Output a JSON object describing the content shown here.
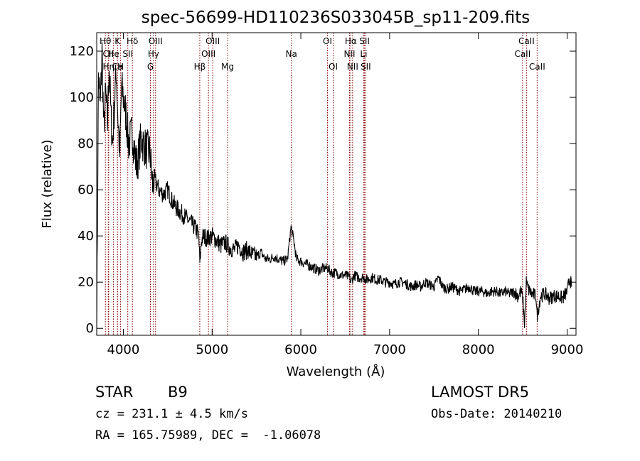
{
  "chart_data": {
    "type": "line",
    "title": "spec-56699-HD110236S033045B_sp11-209.fits",
    "xlabel": "Wavelength (Å)",
    "ylabel": "Flux (relative)",
    "xlim": [
      3700,
      9100
    ],
    "ylim": [
      -3,
      128
    ],
    "xticks": [
      4000,
      5000,
      6000,
      7000,
      8000,
      9000
    ],
    "yticks": [
      0,
      20,
      40,
      60,
      80,
      100,
      120
    ],
    "grid": false,
    "line_color": "#000000",
    "marker_color": "#8b0000",
    "series": [
      {
        "x": [
          3700,
          3720,
          3740,
          3760,
          3780,
          3800,
          3820,
          3840,
          3860,
          3880,
          3900,
          3920,
          3940,
          3960,
          3980,
          4000,
          4030,
          4060,
          4100,
          4150,
          4200,
          4250,
          4300,
          4330,
          4350,
          4400,
          4450,
          4500,
          4550,
          4600,
          4650,
          4700,
          4750,
          4800,
          4830,
          4850,
          4862,
          4880,
          4900,
          4950,
          5000,
          5050,
          5100,
          5150,
          5200,
          5250,
          5300,
          5350,
          5400,
          5450,
          5500,
          5550,
          5600,
          5650,
          5700,
          5750,
          5800,
          5850,
          5890,
          5920,
          5950,
          6000,
          6050,
          6100,
          6150,
          6200,
          6250,
          6300,
          6350,
          6400,
          6450,
          6500,
          6550,
          6563,
          6600,
          6650,
          6700,
          6750,
          6800,
          6850,
          6900,
          6950,
          7000,
          7050,
          7100,
          7150,
          7200,
          7250,
          7300,
          7350,
          7400,
          7450,
          7500,
          7550,
          7600,
          7650,
          7700,
          7750,
          7800,
          7850,
          7900,
          7950,
          8000,
          8050,
          8100,
          8150,
          8200,
          8250,
          8300,
          8350,
          8400,
          8450,
          8480,
          8500,
          8520,
          8540,
          8560,
          8600,
          8650,
          8662,
          8700,
          8750,
          8800,
          8850,
          8900,
          8950,
          9000,
          9030,
          9050
        ],
        "y": [
          0,
          110,
          95,
          120,
          85,
          102,
          88,
          115,
          92,
          80,
          98,
          112,
          90,
          75,
          105,
          100,
          92,
          80,
          85,
          70,
          82,
          78,
          76,
          62,
          65,
          60,
          58,
          60,
          55,
          52,
          50,
          48,
          46,
          44,
          42,
          40,
          28,
          38,
          40,
          39,
          40,
          38,
          36,
          37,
          35,
          34,
          36,
          33,
          34,
          32,
          31,
          33,
          30,
          30,
          31,
          30,
          29,
          30,
          44,
          38,
          30,
          29,
          28,
          27,
          26,
          25,
          26,
          26,
          24,
          24,
          23,
          23,
          22,
          20,
          23,
          22,
          22,
          21,
          22,
          21,
          21,
          20,
          20,
          19,
          20,
          20,
          19,
          18,
          19,
          18,
          20,
          19,
          18,
          22,
          18,
          17,
          18,
          17,
          16,
          17,
          18,
          16,
          16,
          16,
          15,
          16,
          16,
          15,
          16,
          15,
          16,
          14,
          16,
          13,
          2,
          20,
          17,
          15,
          14,
          5,
          14,
          15,
          13,
          14,
          14,
          13,
          16,
          22,
          18
        ]
      }
    ],
    "spectral_lines": [
      {
        "label": "Hθ",
        "x": 3798,
        "row": 1
      },
      {
        "label": "CII",
        "x": 3830,
        "row": 2
      },
      {
        "label": "Ca",
        "x": 3934,
        "row": 3
      },
      {
        "label": "He",
        "x": 3889,
        "row": 2
      },
      {
        "label": "Hη",
        "x": 3835,
        "row": 3
      },
      {
        "label": "K",
        "x": 3934,
        "row": 1
      },
      {
        "label": "H",
        "x": 3969,
        "row": 3
      },
      {
        "label": "Hδ",
        "x": 4102,
        "row": 1
      },
      {
        "label": "SII",
        "x": 4050,
        "row": 2
      },
      {
        "label": "OIII",
        "x": 4363,
        "row": 1
      },
      {
        "label": "Hγ",
        "x": 4340,
        "row": 2
      },
      {
        "label": "G",
        "x": 4305,
        "row": 3
      },
      {
        "label": "Hβ",
        "x": 4861,
        "row": 3
      },
      {
        "label": "OIII",
        "x": 5007,
        "row": 1
      },
      {
        "label": "OIII",
        "x": 4959,
        "row": 2
      },
      {
        "label": "Mg",
        "x": 5175,
        "row": 3
      },
      {
        "label": "Na",
        "x": 5893,
        "row": 2
      },
      {
        "label": "OI",
        "x": 6300,
        "row": 1
      },
      {
        "label": "OI",
        "x": 6364,
        "row": 3
      },
      {
        "label": "Hα",
        "x": 6563,
        "row": 1
      },
      {
        "label": "NII",
        "x": 6548,
        "row": 2
      },
      {
        "label": "NII",
        "x": 6583,
        "row": 3
      },
      {
        "label": "SII",
        "x": 6717,
        "row": 1
      },
      {
        "label": "Li",
        "x": 6708,
        "row": 2
      },
      {
        "label": "SII",
        "x": 6731,
        "row": 3
      },
      {
        "label": "CaII",
        "x": 8542,
        "row": 1
      },
      {
        "label": "CaII",
        "x": 8498,
        "row": 2
      },
      {
        "label": "CaII",
        "x": 8662,
        "row": 3
      }
    ]
  },
  "info": {
    "class_label": "STAR",
    "subclass": "B9",
    "survey": "LAMOST DR5",
    "cz": "cz = 231.1 ± 4.5 km/s",
    "obs_date": "Obs-Date: 20140210",
    "coords": "RA = 165.75989, DEC =  -1.06078"
  }
}
